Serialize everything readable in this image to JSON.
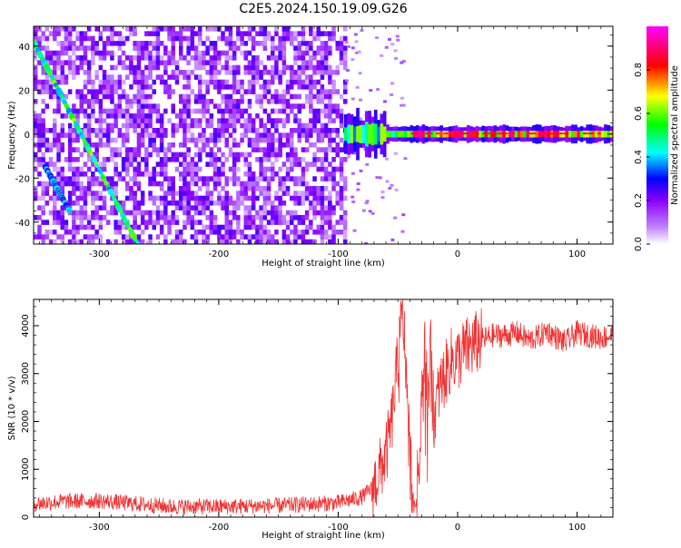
{
  "title": "C2E5.2024.150.19.09.G26",
  "chart_data": [
    {
      "type": "heatmap",
      "xlabel": "Height of straight line (km)",
      "ylabel": "Frequency (Hz)",
      "xlim": [
        -355,
        130
      ],
      "ylim": [
        -50,
        49
      ],
      "xticks": [
        -300,
        -200,
        -100,
        0,
        100
      ],
      "yticks": [
        -40,
        -20,
        0,
        20,
        40
      ],
      "grid": false,
      "colorbar": {
        "label": "Normalized spectral amplitude",
        "range": [
          0,
          1
        ],
        "ticks": [
          "0.0",
          "0.2",
          "0.4",
          "0.6",
          "0.8"
        ],
        "colors": [
          "#ffffff",
          "#8800ff",
          "#0000ff",
          "#00ffff",
          "#00ff00",
          "#ffff00",
          "#ff0000",
          "#ff00ff"
        ]
      },
      "features": [
        {
          "kind": "diagonal-track",
          "x": [
            -355,
            -268
          ],
          "y": [
            42,
            -50
          ],
          "amplitude": 0.5
        },
        {
          "kind": "diagonal-track",
          "x": [
            -345,
            -325
          ],
          "y": [
            -15,
            -35
          ],
          "amplitude": 0.35
        },
        {
          "kind": "horizontal-band",
          "x": [
            -95,
            130
          ],
          "y": [
            0,
            0
          ],
          "amplitude": 0.9
        },
        {
          "kind": "noise-field",
          "x": [
            -355,
            -95
          ],
          "y": [
            -50,
            49
          ],
          "amplitude": 0.2
        }
      ]
    },
    {
      "type": "line",
      "xlabel": "Height of straight line (km)",
      "ylabel": "SNR (10 * v/v)",
      "xlim": [
        -355,
        130
      ],
      "ylim": [
        0,
        4550
      ],
      "xticks": [
        -300,
        -200,
        -100,
        0,
        100
      ],
      "yticks": [
        0,
        1000,
        2000,
        3000,
        4000
      ],
      "grid": false,
      "series": [
        {
          "color": "#ee3333",
          "x": [
            -355,
            -330,
            -300,
            -270,
            -240,
            -200,
            -150,
            -100,
            -80,
            -70,
            -60,
            -55,
            -50,
            -46,
            -44,
            -40,
            -38,
            -35,
            -32,
            -28,
            -25,
            -22,
            -20,
            -15,
            -10,
            -5,
            0,
            5,
            10,
            20,
            30,
            40,
            50,
            60,
            70,
            75,
            80,
            90,
            100,
            110,
            120,
            130
          ],
          "y": [
            280,
            330,
            340,
            280,
            220,
            220,
            240,
            300,
            420,
            650,
            1300,
            2000,
            3300,
            4300,
            3500,
            1500,
            500,
            200,
            1400,
            3800,
            2600,
            3600,
            2100,
            2700,
            3000,
            3300,
            3300,
            3450,
            3550,
            3700,
            3800,
            3800,
            3850,
            3700,
            3800,
            3900,
            3800,
            3650,
            3850,
            3800,
            3750,
            3800
          ]
        }
      ]
    }
  ]
}
